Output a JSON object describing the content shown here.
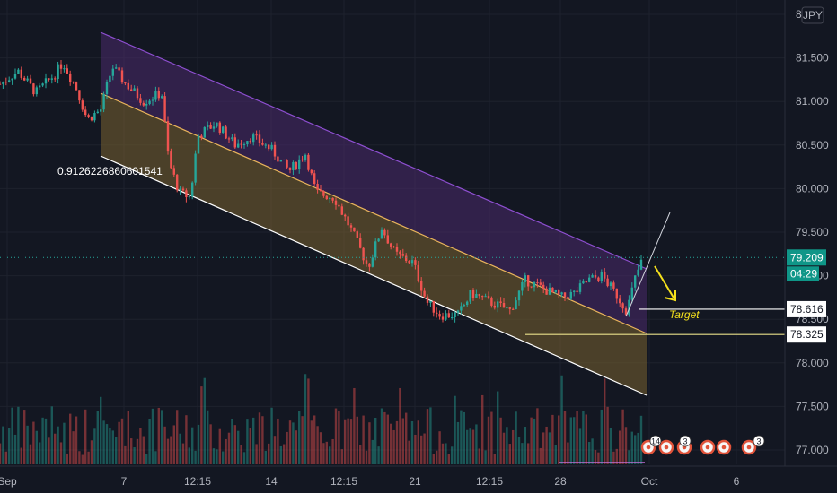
{
  "chart_data": {
    "type": "candlestick",
    "currency_badge": "JPY",
    "y_ticks": [
      "77.000",
      "77.500",
      "78.000",
      "78.500",
      "79.000",
      "79.500",
      "80.000",
      "80.500",
      "81.000",
      "81.500",
      "82"
    ],
    "x_ticks": [
      "Sep",
      "7",
      "12:15",
      "14",
      "12:15",
      "21",
      "12:15",
      "28",
      "Oct",
      "6"
    ],
    "ylim": [
      76.9,
      82.0
    ],
    "current_price": {
      "value": 79.209,
      "label": "79.209",
      "countdown": "04:29",
      "color": "#26a69a"
    },
    "price_tags": [
      {
        "name": "target-level",
        "value": 78.616,
        "label": "78.616"
      },
      {
        "name": "support-level",
        "value": 78.325,
        "label": "78.325"
      }
    ],
    "annotations": {
      "fib_text": "0.9126226860601541",
      "target_text": "Target"
    },
    "event_markers": [
      {
        "label": "14"
      },
      {
        "label": "3"
      },
      {
        "label": "3"
      }
    ],
    "colors": {
      "up": "#26a69a",
      "down": "#ef5350",
      "channel_upper_fill": "#4a2a6b",
      "channel_lower_fill": "#7a6230",
      "channel_upper_line": "#8e4fd1",
      "channel_mid_line": "#e9b45c",
      "channel_lower_line": "#ffffff",
      "target_arrow": "#f5e11c"
    }
  }
}
